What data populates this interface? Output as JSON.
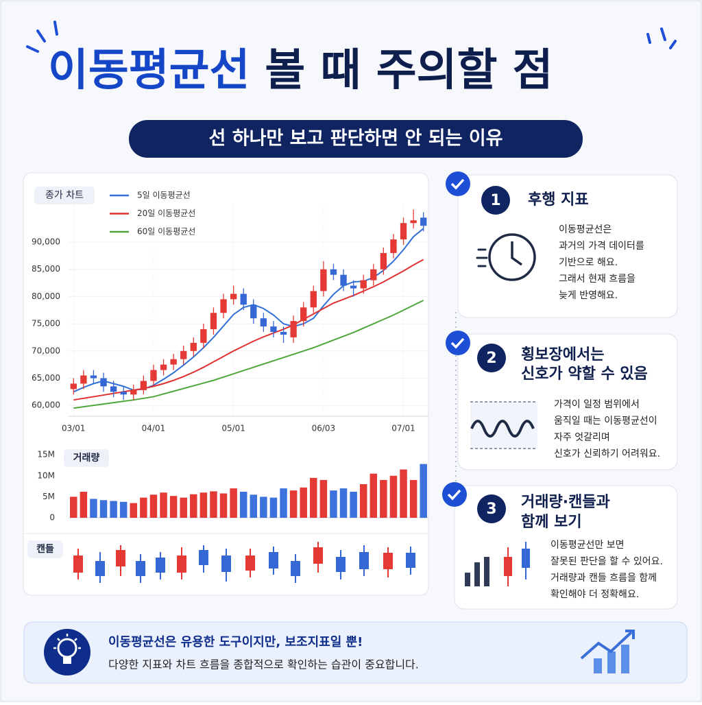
{
  "header": {
    "title_highlight": "이동평균선",
    "title_rest": "볼 때 주의할 점",
    "subtitle": "선 하나만 보고 판단하면 안 되는 이유"
  },
  "chart_data": [
    {
      "type": "candlestick",
      "label": "종가 차트",
      "categories": [
        "03/01",
        null,
        null,
        null,
        null,
        null,
        null,
        null,
        "04/01",
        null,
        null,
        null,
        null,
        null,
        null,
        null,
        "05/01",
        null,
        null,
        null,
        null,
        null,
        null,
        null,
        null,
        "06/03",
        null,
        null,
        null,
        null,
        null,
        null,
        null,
        "07/01",
        null,
        null
      ],
      "open": [
        63000,
        64000,
        65500,
        65000,
        63500,
        62500,
        62000,
        62800,
        64500,
        66500,
        67500,
        68500,
        70000,
        71500,
        74000,
        77000,
        79500,
        80500,
        78500,
        76000,
        74500,
        73500,
        72500,
        75500,
        78000,
        81000,
        85000,
        84000,
        82000,
        81500,
        83000,
        85000,
        88000,
        90500,
        93500,
        94500
      ],
      "high": [
        65000,
        66500,
        66500,
        66000,
        64500,
        63500,
        63800,
        65500,
        67500,
        68500,
        69500,
        71000,
        72500,
        75000,
        78000,
        80500,
        82000,
        81500,
        79500,
        77000,
        75500,
        74500,
        76500,
        79000,
        82000,
        86500,
        86000,
        85000,
        83000,
        84000,
        86000,
        89000,
        91500,
        94500,
        96000,
        95500
      ],
      "low": [
        62000,
        63000,
        64000,
        62500,
        61500,
        61000,
        61000,
        62000,
        63500,
        65500,
        66500,
        67500,
        69000,
        70500,
        73000,
        76000,
        78500,
        77500,
        75000,
        73500,
        72500,
        71500,
        71500,
        74500,
        77000,
        80000,
        83000,
        81000,
        80000,
        80500,
        82000,
        84000,
        87000,
        89500,
        92500,
        92000
      ],
      "close": [
        64000,
        65500,
        65000,
        63500,
        62500,
        62000,
        62800,
        64500,
        66500,
        67500,
        68500,
        70000,
        71500,
        74000,
        77000,
        79500,
        80500,
        78500,
        76000,
        74500,
        73500,
        73000,
        75500,
        78000,
        81000,
        85000,
        84000,
        82000,
        81500,
        83000,
        85000,
        88000,
        90500,
        93500,
        94000,
        93000
      ],
      "up_color": "#e53935",
      "down_color": "#3568d4",
      "ylim": [
        58000,
        97000
      ],
      "yticks": [
        {
          "value": 60000,
          "label": "60,000"
        },
        {
          "value": 65000,
          "label": "65,000"
        },
        {
          "value": 70000,
          "label": "70,000"
        },
        {
          "value": 75000,
          "label": "75,000"
        },
        {
          "value": 80000,
          "label": "80,000"
        },
        {
          "value": 85000,
          "label": "85,000"
        },
        {
          "value": 90000,
          "label": "90,000"
        }
      ],
      "grid": true,
      "series": [
        {
          "name": "5일 이동평균선",
          "color": "#2f6fd6",
          "values": [
            62500,
            63300,
            64000,
            64500,
            64000,
            63500,
            62800,
            63000,
            63700,
            64800,
            66000,
            67400,
            68900,
            70600,
            72500,
            74600,
            76700,
            78000,
            78500,
            77800,
            76600,
            75000,
            74500,
            75000,
            76000,
            78300,
            80400,
            82000,
            82700,
            82800,
            83500,
            84800,
            86500,
            88600,
            91000,
            92500
          ]
        },
        {
          "name": "20일 이동평균선",
          "color": "#e0302f",
          "values": [
            61000,
            61300,
            61600,
            61900,
            62200,
            62500,
            62800,
            63100,
            63500,
            64000,
            64600,
            65300,
            66100,
            67000,
            68000,
            69000,
            70000,
            70900,
            71800,
            72600,
            73300,
            74000,
            74800,
            75800,
            76800,
            77800,
            78800,
            79500,
            80200,
            81000,
            81800,
            82700,
            83700,
            84700,
            85800,
            86800
          ]
        },
        {
          "name": "60일 이동평균선",
          "color": "#4ea63a",
          "values": [
            59500,
            59750,
            60000,
            60250,
            60500,
            60750,
            61000,
            61300,
            61600,
            62100,
            62600,
            63100,
            63600,
            64100,
            64600,
            65200,
            65800,
            66400,
            67000,
            67600,
            68200,
            68800,
            69400,
            70000,
            70600,
            71300,
            72000,
            72700,
            73400,
            74200,
            75000,
            75800,
            76600,
            77500,
            78400,
            79300
          ]
        }
      ]
    },
    {
      "type": "bar",
      "label": "거래량",
      "values": [
        5000000,
        6200000,
        4500000,
        4200000,
        4000000,
        3800000,
        3500000,
        4800000,
        5500000,
        6000000,
        5200000,
        4800000,
        5600000,
        6000000,
        6300000,
        5800000,
        7000000,
        6200000,
        5500000,
        5000000,
        4800000,
        7000000,
        6500000,
        7200000,
        9500000,
        9000000,
        6500000,
        7000000,
        6200000,
        8000000,
        10500000,
        9000000,
        10000000,
        11500000,
        9000000,
        12800000
      ],
      "up_color": "#e53935",
      "down_color": "#3d72dc",
      "ylim": [
        0,
        16000000
      ],
      "yticks": [
        0,
        {
          "value": 5000000,
          "label": "5M"
        },
        {
          "value": 10000000,
          "label": "10M"
        },
        {
          "value": 15000000,
          "label": "15M"
        }
      ]
    }
  ],
  "candle_strip": {
    "label": "캔들"
  },
  "cards": [
    {
      "number": 1,
      "title_lines": [
        "후행 지표"
      ],
      "lines": [
        "이동평균선은",
        "과거의 가격 데이터를",
        "기반으로 해요.",
        "그래서 현재 흐름을",
        "늦게 반영해요."
      ]
    },
    {
      "number": 2,
      "title_lines": [
        "횡보장에서는",
        "신호가 약할 수 있음"
      ],
      "lines": [
        "가격이 일정 범위에서",
        "움직일 때는 이동평균선이",
        "자주 엇갈리며",
        "신호가 신뢰하기 어려워요."
      ]
    },
    {
      "number": 3,
      "title_lines": [
        "거래량·캔들과",
        "함께 보기"
      ],
      "lines": [
        "이동평균선만 보면",
        "잘못된 판단을 할 수 있어요.",
        "거래량과 캔들 흐름을 함께",
        "확인해야 더 정확해요."
      ]
    }
  ],
  "footer": {
    "headline": "이동평균선은 유용한 도구이지만, 보조지표일 뿐!",
    "text": "다양한 지표와 차트 흐름을 종합적으로 확인하는 습관이 중요합니다."
  }
}
